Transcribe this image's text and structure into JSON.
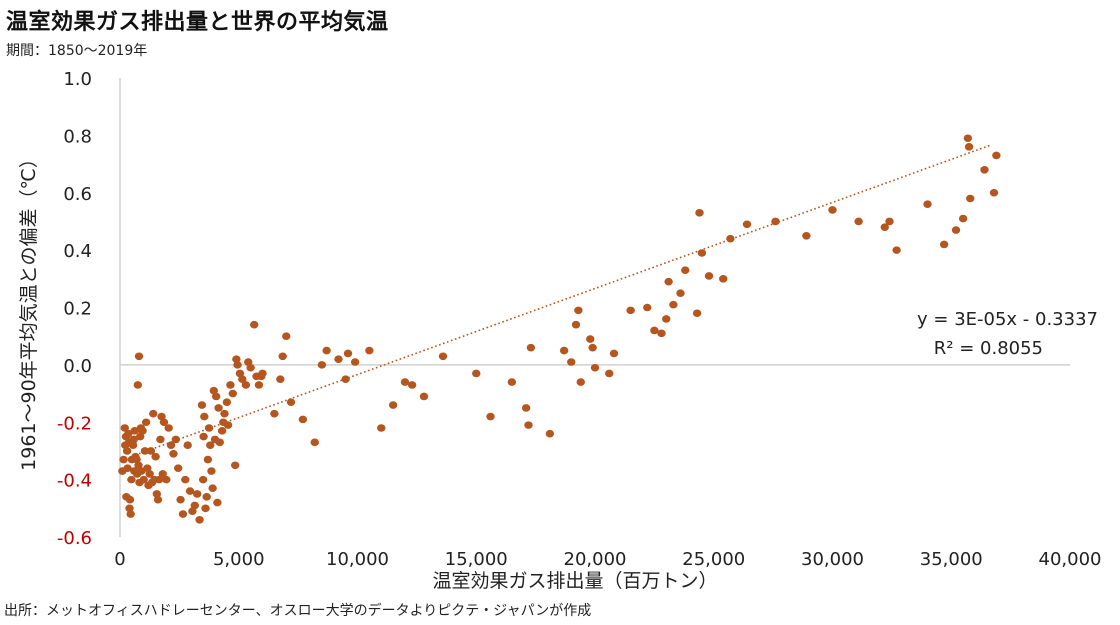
{
  "title": "温室効果ガス排出量と世界の平均気温",
  "subtitle": "期間：1850～2019年",
  "source": "出所：メットオフィスハドレーセンター、オスロー大学のデータよりピクテ・ジャパンが作成",
  "colors": {
    "point": "#b5561e",
    "trendline": "#b5561e",
    "negative_tick": "#c00000",
    "axis": "#d0d0d0"
  },
  "chart_data": {
    "type": "scatter",
    "xlabel": "温室効果ガス排出量（百万トン）",
    "ylabel": "1961～90年平均気温との偏差（℃）",
    "xlim": [
      0,
      40000
    ],
    "ylim": [
      -0.6,
      1.0
    ],
    "x_ticks": [
      "0",
      "5,000",
      "10,000",
      "15,000",
      "20,000",
      "25,000",
      "30,000",
      "35,000",
      "40,000"
    ],
    "y_ticks": [
      "1.0",
      "0.8",
      "0.6",
      "0.4",
      "0.2",
      "0.0",
      "-0.2",
      "-0.4",
      "-0.6"
    ],
    "trendline": {
      "slope": 3e-05,
      "intercept": -0.3337,
      "x_range": [
        800,
        36700
      ],
      "style": "dotted"
    },
    "equation": "y = 3E-05x - 0.3337",
    "r_squared": "R² = 0.8055",
    "points": [
      [
        100,
        -0.37
      ],
      [
        150,
        -0.33
      ],
      [
        200,
        -0.22
      ],
      [
        220,
        -0.28
      ],
      [
        250,
        -0.25
      ],
      [
        270,
        -0.46
      ],
      [
        300,
        -0.3
      ],
      [
        320,
        -0.36
      ],
      [
        350,
        -0.24
      ],
      [
        380,
        -0.27
      ],
      [
        400,
        -0.5
      ],
      [
        420,
        -0.47
      ],
      [
        450,
        -0.52
      ],
      [
        480,
        -0.4
      ],
      [
        500,
        -0.33
      ],
      [
        520,
        -0.27
      ],
      [
        550,
        -0.28
      ],
      [
        580,
        -0.26
      ],
      [
        600,
        -0.37
      ],
      [
        620,
        -0.23
      ],
      [
        650,
        -0.32
      ],
      [
        700,
        -0.33
      ],
      [
        720,
        -0.38
      ],
      [
        750,
        -0.07
      ],
      [
        780,
        -0.35
      ],
      [
        800,
        0.03
      ],
      [
        820,
        -0.41
      ],
      [
        850,
        -0.25
      ],
      [
        880,
        -0.22
      ],
      [
        900,
        -0.37
      ],
      [
        950,
        -0.23
      ],
      [
        1000,
        -0.4
      ],
      [
        1050,
        -0.3
      ],
      [
        1100,
        -0.2
      ],
      [
        1150,
        -0.36
      ],
      [
        1200,
        -0.42
      ],
      [
        1250,
        -0.38
      ],
      [
        1300,
        -0.3
      ],
      [
        1350,
        -0.41
      ],
      [
        1400,
        -0.17
      ],
      [
        1450,
        -0.4
      ],
      [
        1500,
        -0.32
      ],
      [
        1550,
        -0.45
      ],
      [
        1600,
        -0.47
      ],
      [
        1650,
        -0.4
      ],
      [
        1700,
        -0.26
      ],
      [
        1750,
        -0.18
      ],
      [
        1800,
        -0.38
      ],
      [
        1850,
        -0.2
      ],
      [
        1950,
        -0.4
      ],
      [
        2050,
        -0.22
      ],
      [
        2150,
        -0.28
      ],
      [
        2250,
        -0.31
      ],
      [
        2350,
        -0.26
      ],
      [
        2450,
        -0.36
      ],
      [
        2550,
        -0.47
      ],
      [
        2650,
        -0.52
      ],
      [
        2750,
        -0.4
      ],
      [
        2850,
        -0.28
      ],
      [
        2950,
        -0.44
      ],
      [
        3050,
        -0.51
      ],
      [
        3150,
        -0.49
      ],
      [
        3250,
        -0.45
      ],
      [
        3350,
        -0.54
      ],
      [
        3450,
        -0.14
      ],
      [
        3500,
        -0.4
      ],
      [
        3520,
        -0.25
      ],
      [
        3550,
        -0.18
      ],
      [
        3600,
        -0.5
      ],
      [
        3650,
        -0.46
      ],
      [
        3700,
        -0.33
      ],
      [
        3750,
        -0.22
      ],
      [
        3800,
        -0.28
      ],
      [
        3850,
        -0.37
      ],
      [
        3900,
        -0.43
      ],
      [
        3950,
        -0.09
      ],
      [
        4000,
        -0.26
      ],
      [
        4050,
        -0.11
      ],
      [
        4100,
        -0.48
      ],
      [
        4150,
        -0.15
      ],
      [
        4200,
        -0.27
      ],
      [
        4300,
        -0.23
      ],
      [
        4350,
        -0.2
      ],
      [
        4400,
        -0.17
      ],
      [
        4500,
        -0.13
      ],
      [
        4550,
        -0.21
      ],
      [
        4650,
        -0.07
      ],
      [
        4750,
        -0.1
      ],
      [
        4850,
        -0.35
      ],
      [
        4900,
        0.02
      ],
      [
        4950,
        0.0
      ],
      [
        5050,
        -0.03
      ],
      [
        5150,
        -0.05
      ],
      [
        5300,
        -0.07
      ],
      [
        5400,
        0.01
      ],
      [
        5500,
        -0.01
      ],
      [
        5650,
        0.14
      ],
      [
        5750,
        -0.04
      ],
      [
        5850,
        -0.07
      ],
      [
        5950,
        -0.04
      ],
      [
        6000,
        -0.03
      ],
      [
        6500,
        -0.17
      ],
      [
        6750,
        -0.05
      ],
      [
        6850,
        0.03
      ],
      [
        7000,
        0.1
      ],
      [
        7200,
        -0.13
      ],
      [
        7700,
        -0.19
      ],
      [
        8200,
        -0.27
      ],
      [
        8500,
        0.0
      ],
      [
        8700,
        0.05
      ],
      [
        9200,
        0.02
      ],
      [
        9500,
        -0.05
      ],
      [
        9600,
        0.04
      ],
      [
        9900,
        0.01
      ],
      [
        10500,
        0.05
      ],
      [
        11000,
        -0.22
      ],
      [
        11500,
        -0.14
      ],
      [
        12000,
        -0.06
      ],
      [
        12300,
        -0.07
      ],
      [
        12800,
        -0.11
      ],
      [
        13600,
        0.03
      ],
      [
        15000,
        -0.03
      ],
      [
        15600,
        -0.18
      ],
      [
        16500,
        -0.06
      ],
      [
        17100,
        -0.15
      ],
      [
        17200,
        -0.21
      ],
      [
        17300,
        0.06
      ],
      [
        18100,
        -0.24
      ],
      [
        18700,
        0.05
      ],
      [
        19000,
        0.01
      ],
      [
        19200,
        0.14
      ],
      [
        19300,
        0.19
      ],
      [
        19400,
        -0.06
      ],
      [
        19800,
        0.09
      ],
      [
        19900,
        0.06
      ],
      [
        20000,
        -0.01
      ],
      [
        20600,
        -0.03
      ],
      [
        20800,
        0.04
      ],
      [
        21500,
        0.19
      ],
      [
        22200,
        0.2
      ],
      [
        22500,
        0.12
      ],
      [
        22800,
        0.11
      ],
      [
        23000,
        0.16
      ],
      [
        23100,
        0.29
      ],
      [
        23300,
        0.21
      ],
      [
        23600,
        0.25
      ],
      [
        23800,
        0.33
      ],
      [
        24300,
        0.18
      ],
      [
        24400,
        0.53
      ],
      [
        24500,
        0.39
      ],
      [
        24800,
        0.31
      ],
      [
        25400,
        0.3
      ],
      [
        25700,
        0.44
      ],
      [
        26400,
        0.49
      ],
      [
        27600,
        0.5
      ],
      [
        28900,
        0.45
      ],
      [
        30000,
        0.54
      ],
      [
        31100,
        0.5
      ],
      [
        32200,
        0.48
      ],
      [
        32400,
        0.5
      ],
      [
        32700,
        0.4
      ],
      [
        34000,
        0.56
      ],
      [
        34700,
        0.42
      ],
      [
        35200,
        0.47
      ],
      [
        35500,
        0.51
      ],
      [
        35700,
        0.79
      ],
      [
        35750,
        0.76
      ],
      [
        35800,
        0.58
      ],
      [
        36400,
        0.68
      ],
      [
        36800,
        0.6
      ],
      [
        36900,
        0.73
      ]
    ]
  }
}
